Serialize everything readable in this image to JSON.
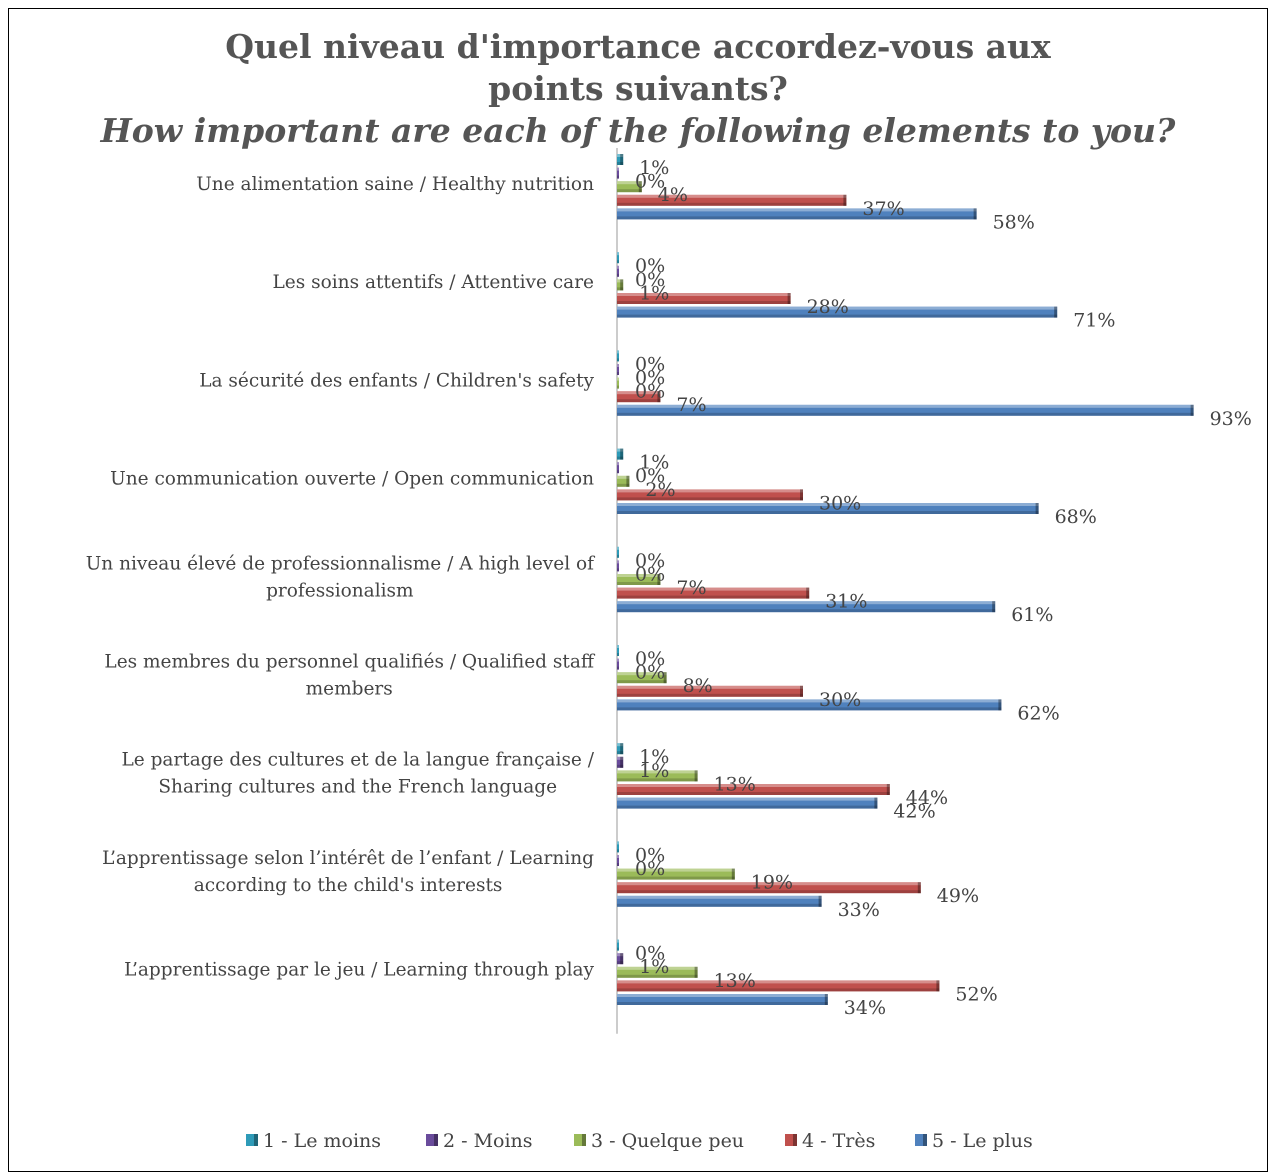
{
  "chart_data": {
    "type": "bar",
    "orientation": "horizontal",
    "title": "Quel niveau d'importance accordez-vous aux points suivants?",
    "subtitle": "How important are each of the following elements to you?",
    "categories": [
      [
        "Une alimentation saine / Healthy nutrition"
      ],
      [
        "Les soins attentifs / Attentive care"
      ],
      [
        "La sécurité des enfants / Children's safety"
      ],
      [
        "Une communication ouverte / Open communication"
      ],
      [
        "Un niveau élevé de professionnalisme / A high level of",
        "professionalism"
      ],
      [
        "Les membres du personnel qualifiés / Qualified staff",
        "members"
      ],
      [
        "Le partage des cultures et de la langue française /",
        "Sharing cultures and the French language"
      ],
      [
        "L’apprentissage selon l’intérêt de l’enfant / Learning",
        "according to the child's interests"
      ],
      [
        "L’apprentissage par le jeu / Learning through play"
      ]
    ],
    "series": [
      {
        "name": "1 - Le moins",
        "color": "#2E9BB8",
        "values": [
          1,
          0,
          0,
          1,
          0,
          0,
          1,
          0,
          0
        ]
      },
      {
        "name": "2 - Moins",
        "color": "#6A4C9C",
        "values": [
          0,
          0,
          0,
          0,
          0,
          0,
          1,
          0,
          1
        ]
      },
      {
        "name": "3 - Quelque peu",
        "color": "#9BBB59",
        "values": [
          4,
          1,
          0,
          2,
          7,
          8,
          13,
          19,
          13
        ]
      },
      {
        "name": "4 - Très",
        "color": "#C0504D",
        "values": [
          37,
          28,
          7,
          30,
          31,
          30,
          44,
          49,
          52
        ]
      },
      {
        "name": "5 - Le plus",
        "color": "#4F81BD",
        "values": [
          58,
          71,
          93,
          68,
          61,
          62,
          42,
          33,
          34
        ]
      }
    ],
    "value_suffix": "%",
    "xlim": [
      0,
      100
    ],
    "grid": false,
    "legend_position": "bottom"
  }
}
